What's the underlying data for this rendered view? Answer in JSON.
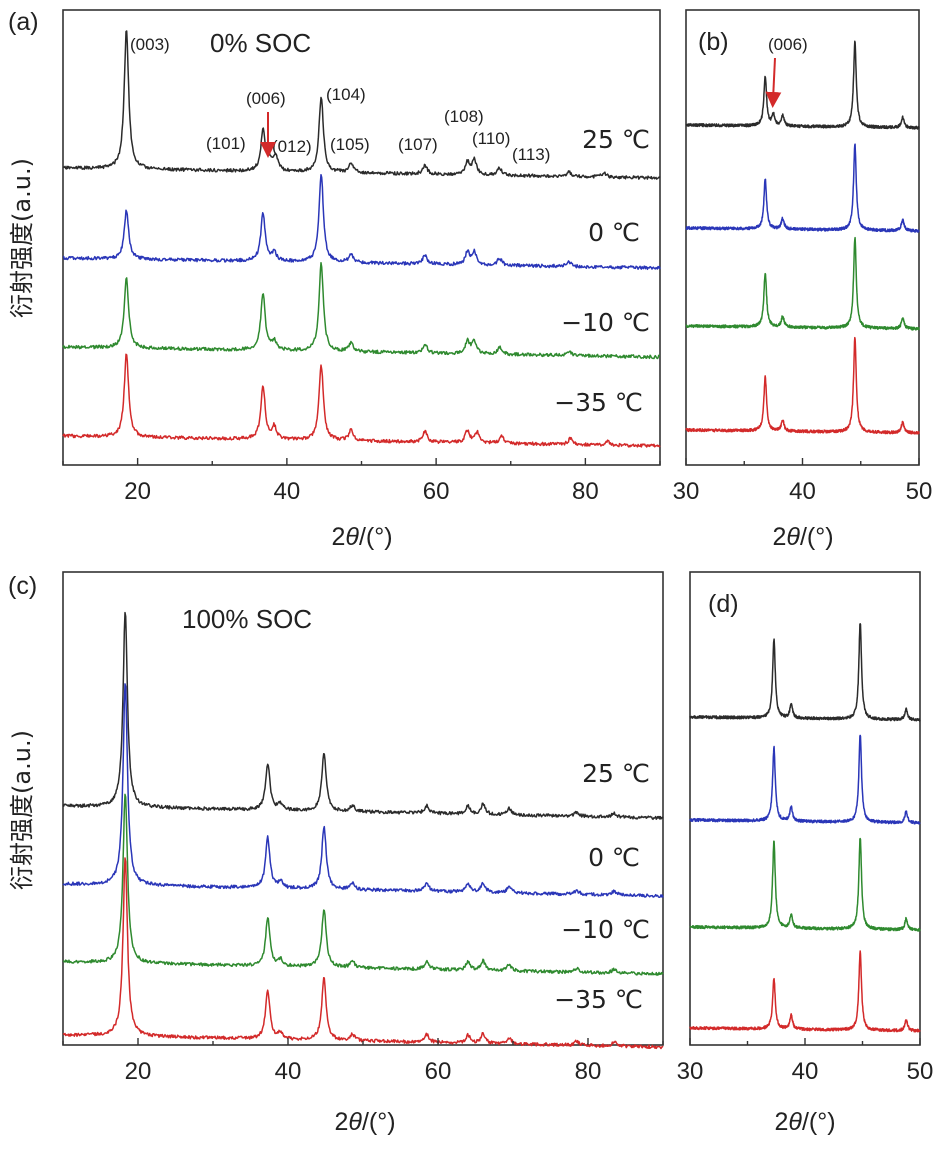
{
  "colors": {
    "25": "#2b2b2b",
    "0": "#2a36b8",
    "-10": "#2f8a2f",
    "-35": "#d32a2a",
    "arrow": "#d32a2a"
  },
  "ylabel": "衍射强度(a.u.)",
  "xlabel_text": "2θ/(°)",
  "temperature_labels": [
    "25 ℃",
    "0 ℃",
    "−10 ℃",
    "−35 ℃"
  ],
  "chart_data": [
    {
      "panel": "(a)",
      "type": "line",
      "title": "0% SOC",
      "xlabel": "2θ/(°)",
      "ylabel": "衍射强度(a.u.)",
      "xlim": [
        10,
        90
      ],
      "xticks": [
        20,
        40,
        60,
        80
      ],
      "series": [
        {
          "name": "25 ℃",
          "offset": 3,
          "peaks": [
            [
              18.5,
              1.6
            ],
            [
              36.8,
              0.45
            ],
            [
              37.6,
              0.12
            ],
            [
              38.5,
              0.18
            ],
            [
              44.6,
              0.85
            ],
            [
              48.6,
              0.1
            ],
            [
              58.5,
              0.1
            ],
            [
              64.2,
              0.14
            ],
            [
              65.1,
              0.17
            ],
            [
              68.5,
              0.08
            ],
            [
              77.8,
              0.05
            ],
            [
              82.5,
              0.05
            ]
          ]
        },
        {
          "name": "0 ℃",
          "offset": 2,
          "peaks": [
            [
              18.5,
              0.55
            ],
            [
              36.8,
              0.55
            ],
            [
              38.3,
              0.1
            ],
            [
              44.6,
              1.0
            ],
            [
              48.6,
              0.1
            ],
            [
              58.5,
              0.1
            ],
            [
              64.2,
              0.14
            ],
            [
              65.1,
              0.14
            ],
            [
              68.5,
              0.08
            ],
            [
              77.8,
              0.05
            ]
          ]
        },
        {
          "name": "−10 ℃",
          "offset": 1,
          "peaks": [
            [
              18.5,
              0.8
            ],
            [
              36.8,
              0.65
            ],
            [
              38.3,
              0.1
            ],
            [
              44.6,
              1.0
            ],
            [
              48.6,
              0.1
            ],
            [
              58.5,
              0.1
            ],
            [
              64.2,
              0.14
            ],
            [
              65.1,
              0.14
            ],
            [
              68.5,
              0.08
            ],
            [
              77.8,
              0.05
            ]
          ]
        },
        {
          "name": "−35 ℃",
          "offset": 0,
          "peaks": [
            [
              18.5,
              0.95
            ],
            [
              36.8,
              0.6
            ],
            [
              38.3,
              0.14
            ],
            [
              44.6,
              0.85
            ],
            [
              48.6,
              0.12
            ],
            [
              58.5,
              0.12
            ],
            [
              64.2,
              0.14
            ],
            [
              65.5,
              0.12
            ],
            [
              68.8,
              0.08
            ],
            [
              78.0,
              0.07
            ],
            [
              83.0,
              0.04
            ]
          ]
        }
      ],
      "annotations": [
        "(003)",
        "(101)",
        "(006)",
        "(012)",
        "(104)",
        "(105)",
        "(107)",
        "(108)",
        "(110)",
        "(113)"
      ]
    },
    {
      "panel": "(b)",
      "type": "line",
      "title": "",
      "xlabel": "2θ/(°)",
      "xlim": [
        30,
        50
      ],
      "xticks": [
        30,
        40,
        50
      ],
      "series": [
        {
          "name": "25 ℃",
          "offset": 3,
          "peaks": [
            [
              36.8,
              0.55
            ],
            [
              37.5,
              0.12
            ],
            [
              38.3,
              0.12
            ],
            [
              44.5,
              0.95
            ],
            [
              48.6,
              0.12
            ]
          ]
        },
        {
          "name": "0 ℃",
          "offset": 2,
          "peaks": [
            [
              36.8,
              0.55
            ],
            [
              38.3,
              0.12
            ],
            [
              44.5,
              0.95
            ],
            [
              48.6,
              0.12
            ]
          ]
        },
        {
          "name": "−10 ℃",
          "offset": 1,
          "peaks": [
            [
              36.8,
              0.6
            ],
            [
              38.3,
              0.12
            ],
            [
              44.5,
              1.0
            ],
            [
              48.6,
              0.12
            ]
          ]
        },
        {
          "name": "−35 ℃",
          "offset": 0,
          "peaks": [
            [
              36.8,
              0.6
            ],
            [
              38.3,
              0.12
            ],
            [
              44.5,
              1.05
            ],
            [
              48.6,
              0.12
            ]
          ]
        }
      ],
      "annotations": [
        "(006)"
      ]
    },
    {
      "panel": "(c)",
      "type": "line",
      "title": "100% SOC",
      "xlabel": "2θ/(°)",
      "ylabel": "衍射强度(a.u.)",
      "xlim": [
        10,
        90
      ],
      "xticks": [
        20,
        40,
        60,
        80
      ],
      "series": [
        {
          "name": "25 ℃",
          "offset": 3,
          "peaks": [
            [
              18.3,
              2.5
            ],
            [
              37.3,
              0.6
            ],
            [
              39.0,
              0.08
            ],
            [
              44.8,
              0.75
            ],
            [
              48.6,
              0.08
            ],
            [
              58.5,
              0.1
            ],
            [
              64.0,
              0.1
            ],
            [
              66.0,
              0.13
            ],
            [
              69.5,
              0.08
            ],
            [
              78.5,
              0.05
            ],
            [
              83.5,
              0.05
            ]
          ]
        },
        {
          "name": "0 ℃",
          "offset": 2,
          "peaks": [
            [
              18.3,
              2.6
            ],
            [
              37.3,
              0.65
            ],
            [
              39.0,
              0.08
            ],
            [
              44.8,
              0.8
            ],
            [
              48.6,
              0.08
            ],
            [
              58.5,
              0.1
            ],
            [
              64.0,
              0.1
            ],
            [
              66.0,
              0.12
            ],
            [
              69.5,
              0.08
            ],
            [
              78.5,
              0.05
            ],
            [
              83.5,
              0.05
            ]
          ]
        },
        {
          "name": "−10 ℃",
          "offset": 1,
          "peaks": [
            [
              18.3,
              2.2
            ],
            [
              37.3,
              0.62
            ],
            [
              39.0,
              0.08
            ],
            [
              44.8,
              0.75
            ],
            [
              48.6,
              0.08
            ],
            [
              58.5,
              0.1
            ],
            [
              64.0,
              0.1
            ],
            [
              66.0,
              0.12
            ],
            [
              69.5,
              0.08
            ],
            [
              78.5,
              0.05
            ],
            [
              83.5,
              0.05
            ]
          ]
        },
        {
          "name": "−35 ℃",
          "offset": 0,
          "peaks": [
            [
              18.3,
              2.3
            ],
            [
              37.3,
              0.62
            ],
            [
              39.0,
              0.08
            ],
            [
              44.8,
              0.8
            ],
            [
              48.6,
              0.08
            ],
            [
              58.5,
              0.1
            ],
            [
              64.0,
              0.1
            ],
            [
              66.0,
              0.12
            ],
            [
              69.5,
              0.08
            ],
            [
              78.5,
              0.05
            ],
            [
              83.5,
              0.05
            ]
          ]
        }
      ],
      "annotations": []
    },
    {
      "panel": "(d)",
      "type": "line",
      "title": "",
      "xlabel": "2θ/(°)",
      "xlim": [
        30,
        50
      ],
      "xticks": [
        30,
        40,
        50
      ],
      "series": [
        {
          "name": "25 ℃",
          "offset": 3,
          "peaks": [
            [
              37.3,
              0.85
            ],
            [
              38.8,
              0.15
            ],
            [
              44.8,
              1.05
            ],
            [
              48.8,
              0.12
            ]
          ]
        },
        {
          "name": "0 ℃",
          "offset": 2,
          "peaks": [
            [
              37.3,
              0.8
            ],
            [
              38.8,
              0.15
            ],
            [
              44.8,
              0.95
            ],
            [
              48.8,
              0.12
            ]
          ]
        },
        {
          "name": "−10 ℃",
          "offset": 1,
          "peaks": [
            [
              37.3,
              0.95
            ],
            [
              38.8,
              0.15
            ],
            [
              44.8,
              1.0
            ],
            [
              48.8,
              0.12
            ]
          ]
        },
        {
          "name": "−35 ℃",
          "offset": 0,
          "peaks": [
            [
              37.3,
              0.55
            ],
            [
              38.8,
              0.15
            ],
            [
              44.8,
              0.85
            ],
            [
              48.8,
              0.12
            ]
          ]
        }
      ],
      "annotations": []
    }
  ]
}
